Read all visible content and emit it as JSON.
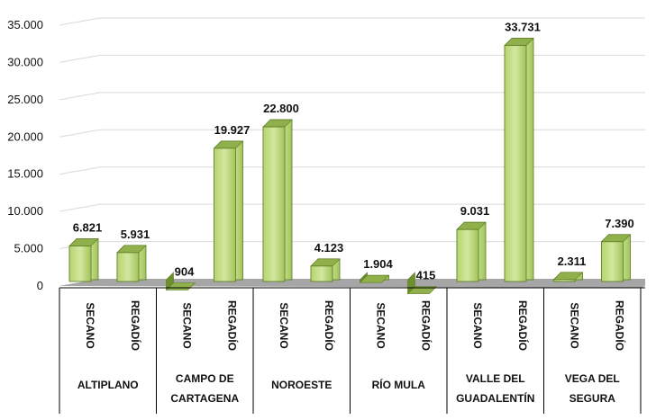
{
  "chart_data": {
    "type": "bar",
    "ylim": [
      0,
      35000
    ],
    "yticks": [
      "0",
      "5.000",
      "10.000",
      "15.000",
      "20.000",
      "25.000",
      "30.000",
      "35.000"
    ],
    "subcategories": [
      "SECANO",
      "REGADÍO"
    ],
    "regions": [
      {
        "name": [
          "ALTIPLANO"
        ],
        "values": [
          6821,
          5931
        ],
        "labels": [
          "6.821",
          "5.931"
        ]
      },
      {
        "name": [
          "CAMPO DE",
          "CARTAGENA"
        ],
        "values": [
          904,
          19927
        ],
        "labels": [
          "904",
          "19.927"
        ]
      },
      {
        "name": [
          "NOROESTE"
        ],
        "values": [
          22800,
          4123
        ],
        "labels": [
          "22.800",
          "4.123"
        ]
      },
      {
        "name": [
          "RÍO MULA"
        ],
        "values": [
          1904,
          415
        ],
        "labels": [
          "1.904",
          "415"
        ]
      },
      {
        "name": [
          "VALLE DEL",
          "GUADALENTÍN"
        ],
        "values": [
          9031,
          33731
        ],
        "labels": [
          "9.031",
          "33.731"
        ]
      },
      {
        "name": [
          "VEGA DEL",
          "SEGURA"
        ],
        "values": [
          2311,
          7390
        ],
        "labels": [
          "2.311",
          "7.390"
        ]
      }
    ],
    "colors": {
      "front": "#a6c85f",
      "front_light": "#c8e08b",
      "side": "#6d8f2e",
      "top": "#8fb04a",
      "border": "#5a7a22",
      "floor": "#a6a6a6",
      "grid": "#d9d9d9"
    }
  }
}
